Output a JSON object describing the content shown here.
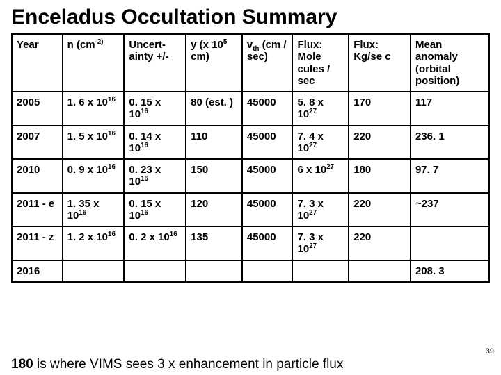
{
  "title": "Enceladus Occultation Summary",
  "page_number": "39",
  "footer_bold": "180",
  "footer_rest": " is where VIMS sees 3 x enhancement in particle flux",
  "headers": {
    "h0": "Year",
    "h1": "n (cm<sup>-2)</sup>",
    "h2": "Uncert-ainty +/-",
    "h3": "y (x 10<sup>5</sup> cm)",
    "h4": "v<sub>th</sub> (cm / sec)",
    "h5": "Flux: Mole cules / sec",
    "h6": "Flux: Kg/se c",
    "h7": "Mean anomaly (orbital position)"
  },
  "rows": [
    {
      "c0": "2005",
      "c1": "1. 6 x 10<sup>16</sup>",
      "c2": "0. 15 x 10<sup>16</sup>",
      "c3": "80 (est. )",
      "c4": "45000",
      "c5": "5. 8 x 10<sup>27</sup>",
      "c6": "170",
      "c7": "117"
    },
    {
      "c0": "2007",
      "c1": "1. 5 x 10<sup>16</sup>",
      "c2": "0. 14 x 10<sup>16</sup>",
      "c3": "110",
      "c4": "45000",
      "c5": "7. 4 x 10<sup>27</sup>",
      "c6": "220",
      "c7": "236. 1"
    },
    {
      "c0": "2010",
      "c1": "0. 9 x 10<sup>16</sup>",
      "c2": "0. 23 x 10<sup>16</sup>",
      "c3": "150",
      "c4": "45000",
      "c5": "6 x 10<sup>27</sup>",
      "c6": "180",
      "c7": "97. 7"
    },
    {
      "c0": "2011 - e",
      "c1": "1. 35 x 10<sup>16</sup>",
      "c2": "0. 15 x 10<sup>16</sup>",
      "c3": "120",
      "c4": "45000",
      "c5": "7. 3 x 10<sup>27</sup>",
      "c6": "220",
      "c7": "~237"
    },
    {
      "c0": "2011 - z",
      "c1": "1. 2 x 10<sup>16</sup>",
      "c2": "0. 2 x 10<sup>16</sup>",
      "c3": "135",
      "c4": "45000",
      "c5": "7. 3 x 10<sup>27</sup>",
      "c6": "220",
      "c7": ""
    },
    {
      "c0": "2016",
      "c1": "",
      "c2": "",
      "c3": "",
      "c4": "",
      "c5": "",
      "c6": "",
      "c7": "208. 3"
    }
  ],
  "style": {
    "bg": "#ffffff",
    "text": "#000000",
    "border": "#000000",
    "title_fontsize": 30,
    "cell_fontsize": 15,
    "footer_fontsize": 19
  }
}
